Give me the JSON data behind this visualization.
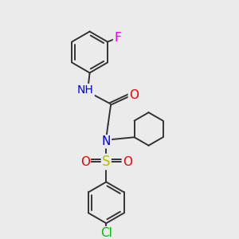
{
  "bg_color": "#ebebeb",
  "atom_colors": {
    "C": "#000000",
    "N": "#0000ee",
    "O": "#ee0000",
    "S": "#bbbb00",
    "F": "#ee00ee",
    "Cl": "#00bb00",
    "H": "#777777"
  },
  "bond_color": "#333333",
  "bond_width": 1.4,
  "fig_size": [
    3.0,
    3.0
  ],
  "dpi": 100
}
